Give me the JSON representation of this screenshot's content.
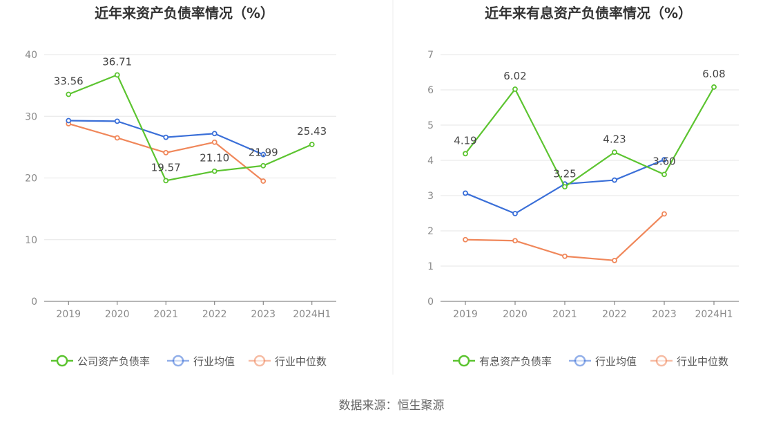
{
  "source": "数据来源：恒生聚源",
  "chart_data": [
    {
      "type": "line",
      "title": "近年来资产负债率情况（%）",
      "categories": [
        "2019",
        "2020",
        "2021",
        "2022",
        "2023",
        "2024H1"
      ],
      "ylim": [
        0,
        40
      ],
      "yticks": [
        0,
        10,
        20,
        30,
        40
      ],
      "series": [
        {
          "name": "公司资产负债率",
          "color": "#5cc430",
          "values": [
            33.56,
            36.71,
            19.57,
            21.1,
            21.99,
            25.43
          ],
          "labels": [
            "33.56",
            "36.71",
            "19.57",
            "21.10",
            "21.99",
            "25.43"
          ]
        },
        {
          "name": "行业均值",
          "color": "#3a6fd8",
          "values": [
            29.3,
            29.2,
            26.6,
            27.2,
            23.8,
            null
          ]
        },
        {
          "name": "行业中位数",
          "color": "#f0875a",
          "values": [
            28.8,
            26.5,
            24.1,
            25.8,
            19.5,
            null
          ]
        }
      ]
    },
    {
      "type": "line",
      "title": "近年来有息资产负债率情况（%）",
      "categories": [
        "2019",
        "2020",
        "2021",
        "2022",
        "2023",
        "2024H1"
      ],
      "ylim": [
        0,
        7
      ],
      "yticks": [
        0,
        1,
        2,
        3,
        4,
        5,
        6,
        7
      ],
      "series": [
        {
          "name": "有息资产负债率",
          "color": "#5cc430",
          "values": [
            4.19,
            6.02,
            3.25,
            4.23,
            3.6,
            6.08
          ],
          "labels": [
            "4.19",
            "6.02",
            "3.25",
            "4.23",
            "3.60",
            "6.08"
          ]
        },
        {
          "name": "行业均值",
          "color": "#3a6fd8",
          "values": [
            3.07,
            2.49,
            3.33,
            3.44,
            4.02,
            null
          ]
        },
        {
          "name": "行业中位数",
          "color": "#f0875a",
          "values": [
            1.75,
            1.72,
            1.28,
            1.16,
            2.48,
            null
          ]
        }
      ]
    }
  ]
}
